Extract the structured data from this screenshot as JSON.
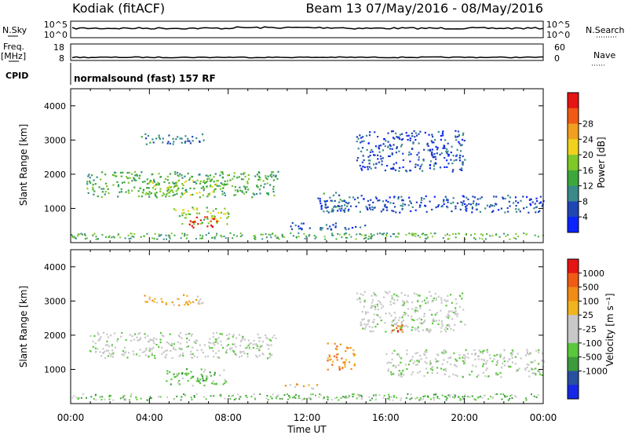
{
  "header": {
    "station": "Kodiak (fitACF)",
    "beam_date": "Beam 13 07/May/2016 - 08/May/2016"
  },
  "strip_nsky": {
    "left_label": "N.Sky",
    "left_ticks": [
      "10^5",
      "10^0"
    ],
    "right_ticks": [
      "10^5",
      "10^0"
    ],
    "right_label": "N.Search"
  },
  "strip_freq": {
    "left_label_1": "Freq.",
    "left_label_2": "[MHz]",
    "left_ticks": [
      "18",
      "8"
    ],
    "right_ticks": [
      "60",
      "0"
    ],
    "right_label": "Nave"
  },
  "strip_cpid": {
    "left_label": "CPID",
    "program": "normalsound (fast) 157 RF"
  },
  "chart_data": [
    {
      "type": "heatmap",
      "name": "Power",
      "ylabel": "Slant Range [km]",
      "yticks": [
        1000,
        2000,
        3000,
        4000
      ],
      "ylim": [
        0,
        4500
      ],
      "xlim_hours": [
        0,
        24
      ],
      "colorbar_label": "Power [dB]",
      "colorbar_ticks": [
        "4",
        "8",
        "12",
        "16",
        "20",
        "24",
        "28"
      ],
      "colorbar_colors": [
        "#0a23ff",
        "#2046b4",
        "#3a8a8a",
        "#3ca83c",
        "#7ec828",
        "#f0d21e",
        "#f0a01e",
        "#f05a14",
        "#e61414"
      ],
      "regions": [
        {
          "t0": 0.8,
          "t1": 10.5,
          "r0": 1350,
          "r1": 2100,
          "level": 3
        },
        {
          "t0": 3.6,
          "t1": 7.8,
          "r0": 1400,
          "r1": 1850,
          "level": 4
        },
        {
          "t0": 3.5,
          "t1": 6.8,
          "r0": 2900,
          "r1": 3200,
          "level": 2
        },
        {
          "t0": 5.2,
          "t1": 8.0,
          "r0": 550,
          "r1": 1050,
          "level": 4
        },
        {
          "t0": 6.0,
          "t1": 7.4,
          "r0": 450,
          "r1": 800,
          "level": 8
        },
        {
          "t0": 12.8,
          "t1": 14.2,
          "r0": 900,
          "r1": 1500,
          "level": 2
        },
        {
          "t0": 14.5,
          "t1": 20.0,
          "r0": 2100,
          "r1": 3300,
          "level": 1
        },
        {
          "t0": 12.5,
          "t1": 24.0,
          "r0": 900,
          "r1": 1400,
          "level": 1
        },
        {
          "t0": 11.0,
          "t1": 15.0,
          "r0": 400,
          "r1": 600,
          "level": 1
        }
      ]
    },
    {
      "type": "heatmap",
      "name": "Velocity",
      "ylabel": "Slant Range [km]",
      "yticks": [
        1000,
        2000,
        3000,
        4000
      ],
      "ylim": [
        0,
        4500
      ],
      "xlim_hours": [
        0,
        24
      ],
      "xticks": [
        "00:00",
        "04:00",
        "08:00",
        "12:00",
        "16:00",
        "20:00",
        "00:00"
      ],
      "xlabel": "Time UT",
      "colorbar_label": "Velocity [m s⁻¹]",
      "colorbar_ticks": [
        "1000",
        "500",
        "100",
        "25",
        "-25",
        "-100",
        "-500",
        "-1000"
      ],
      "colorbar_colors": [
        "#1428e6",
        "#2850a0",
        "#3c9b3c",
        "#5ac83c",
        "#c8c8c8",
        "#c8c8c8",
        "#f0b41e",
        "#f08c14",
        "#f05a14",
        "#e61414"
      ],
      "regions": [
        {
          "t0": 0.8,
          "t1": 10.5,
          "r0": 1350,
          "r1": 2100,
          "level": 4
        },
        {
          "t0": 3.5,
          "t1": 6.8,
          "r0": 2900,
          "r1": 3200,
          "level": 6
        },
        {
          "t0": 4.8,
          "t1": 7.9,
          "r0": 550,
          "r1": 1050,
          "level": 3
        },
        {
          "t0": 6.3,
          "t1": 6.9,
          "r0": 600,
          "r1": 850,
          "level": 2
        },
        {
          "t0": 13.0,
          "t1": 14.4,
          "r0": 1000,
          "r1": 1800,
          "level": 7
        },
        {
          "t0": 10.8,
          "t1": 12.5,
          "r0": 450,
          "r1": 600,
          "level": 6
        },
        {
          "t0": 16.2,
          "t1": 17.3,
          "r0": 2100,
          "r1": 2400,
          "level": 8
        },
        {
          "t0": 14.5,
          "t1": 20.0,
          "r0": 2100,
          "r1": 3300,
          "level": 4
        },
        {
          "t0": 16.0,
          "t1": 24.0,
          "r0": 800,
          "r1": 1600,
          "level": 4
        }
      ]
    }
  ]
}
